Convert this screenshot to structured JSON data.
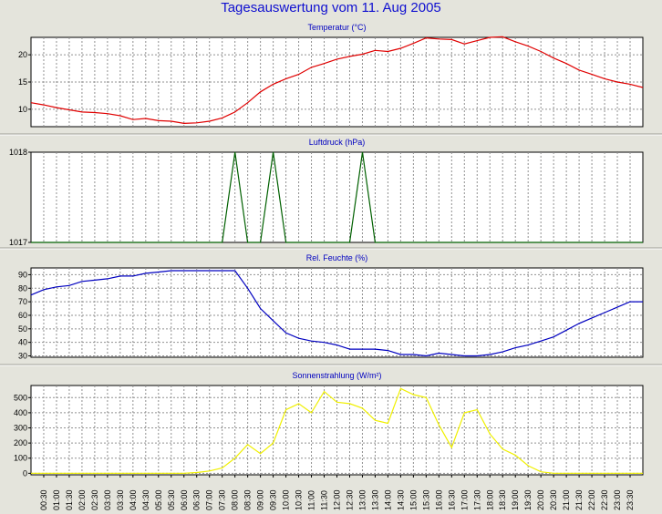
{
  "title": "Tagesauswertung vom 11. Aug 2005",
  "chart_data": [
    {
      "type": "line",
      "title": "Temperatur (°C)",
      "ylim": [
        6.8,
        23.2
      ],
      "yticks": [
        10,
        15,
        20
      ],
      "color": "#e00000",
      "x": [
        "00:00",
        "00:30",
        "01:00",
        "01:30",
        "02:00",
        "02:30",
        "03:00",
        "03:30",
        "04:00",
        "04:30",
        "05:00",
        "05:30",
        "06:00",
        "06:30",
        "07:00",
        "07:30",
        "08:00",
        "08:30",
        "09:00",
        "09:30",
        "10:00",
        "10:30",
        "11:00",
        "11:30",
        "12:00",
        "12:30",
        "13:00",
        "13:30",
        "14:00",
        "14:30",
        "15:00",
        "15:30",
        "16:00",
        "16:30",
        "17:00",
        "17:30",
        "18:00",
        "18:30",
        "19:00",
        "19:30",
        "20:00",
        "20:30",
        "21:00",
        "21:30",
        "22:00",
        "22:30",
        "23:00",
        "23:30",
        "24:00"
      ],
      "values": [
        11.2,
        10.8,
        10.3,
        9.9,
        9.5,
        9.4,
        9.2,
        8.8,
        8.1,
        8.3,
        7.9,
        7.8,
        7.4,
        7.5,
        7.8,
        8.4,
        9.5,
        11.2,
        13.2,
        14.6,
        15.6,
        16.4,
        17.7,
        18.4,
        19.2,
        19.7,
        20.1,
        20.8,
        20.6,
        21.2,
        22.1,
        23.1,
        22.9,
        22.8,
        22.0,
        22.6,
        23.2,
        23.3,
        22.4,
        21.6,
        20.6,
        19.4,
        18.4,
        17.2,
        16.4,
        15.6,
        15.0,
        14.6,
        14.0
      ]
    },
    {
      "type": "line",
      "title": "Luftdruck (hPa)",
      "ylim": [
        1017,
        1018
      ],
      "yticks": [
        1017,
        1018
      ],
      "color": "#006000",
      "x": [
        "00:00",
        "00:30",
        "01:00",
        "01:30",
        "02:00",
        "02:30",
        "03:00",
        "03:30",
        "04:00",
        "04:30",
        "05:00",
        "05:30",
        "06:00",
        "06:30",
        "07:00",
        "07:30",
        "08:00",
        "08:30",
        "09:00",
        "09:30",
        "10:00",
        "10:30",
        "11:00",
        "11:30",
        "12:00",
        "12:30",
        "13:00",
        "13:30",
        "14:00",
        "14:30",
        "15:00",
        "15:30",
        "16:00",
        "16:30",
        "17:00",
        "17:30",
        "18:00",
        "18:30",
        "19:00",
        "19:30",
        "20:00",
        "20:30",
        "21:00",
        "21:30",
        "22:00",
        "22:30",
        "23:00",
        "23:30",
        "24:00"
      ],
      "values": [
        1017,
        1017,
        1017,
        1017,
        1017,
        1017,
        1017,
        1017,
        1017,
        1017,
        1017,
        1017,
        1017,
        1017,
        1017,
        1017,
        1018,
        1017,
        1017,
        1018,
        1017,
        1017,
        1017,
        1017,
        1017,
        1017,
        1018,
        1017,
        1017,
        1017,
        1017,
        1017,
        1017,
        1017,
        1017,
        1017,
        1017,
        1017,
        1017,
        1017,
        1017,
        1017,
        1017,
        1017,
        1017,
        1017,
        1017,
        1017,
        1017
      ]
    },
    {
      "type": "line",
      "title": "Rel. Feuchte (%)",
      "ylim": [
        29,
        95
      ],
      "yticks": [
        30,
        40,
        50,
        60,
        70,
        80,
        90
      ],
      "color": "#0000c0",
      "x": [
        "00:00",
        "00:30",
        "01:00",
        "01:30",
        "02:00",
        "02:30",
        "03:00",
        "03:30",
        "04:00",
        "04:30",
        "05:00",
        "05:30",
        "06:00",
        "06:30",
        "07:00",
        "07:30",
        "08:00",
        "08:30",
        "09:00",
        "09:30",
        "10:00",
        "10:30",
        "11:00",
        "11:30",
        "12:00",
        "12:30",
        "13:00",
        "13:30",
        "14:00",
        "14:30",
        "15:00",
        "15:30",
        "16:00",
        "16:30",
        "17:00",
        "17:30",
        "18:00",
        "18:30",
        "19:00",
        "19:30",
        "20:00",
        "20:30",
        "21:00",
        "21:30",
        "22:00",
        "22:30",
        "23:00",
        "23:30",
        "24:00"
      ],
      "values": [
        75,
        79,
        81,
        82,
        85,
        86,
        87,
        89,
        89,
        91,
        92,
        93,
        93,
        93,
        93,
        93,
        93,
        80,
        65,
        56,
        47,
        43,
        41,
        40,
        38,
        35,
        35,
        35,
        34,
        31,
        31,
        30,
        32,
        31,
        30,
        30,
        31,
        33,
        36,
        38,
        41,
        44,
        49,
        54,
        58,
        62,
        66,
        70,
        70
      ]
    },
    {
      "type": "line",
      "title": "Sonnenstrahlung (W/m²)",
      "ylim": [
        -10,
        580
      ],
      "yticks": [
        0,
        100,
        200,
        300,
        400,
        500
      ],
      "color": "#f0f000",
      "x": [
        "00:00",
        "00:30",
        "01:00",
        "01:30",
        "02:00",
        "02:30",
        "03:00",
        "03:30",
        "04:00",
        "04:30",
        "05:00",
        "05:30",
        "06:00",
        "06:30",
        "07:00",
        "07:30",
        "08:00",
        "08:30",
        "09:00",
        "09:30",
        "10:00",
        "10:30",
        "11:00",
        "11:30",
        "12:00",
        "12:30",
        "13:00",
        "13:30",
        "14:00",
        "14:30",
        "15:00",
        "15:30",
        "16:00",
        "16:30",
        "17:00",
        "17:30",
        "18:00",
        "18:30",
        "19:00",
        "19:30",
        "20:00",
        "20:30",
        "21:00",
        "21:30",
        "22:00",
        "22:30",
        "23:00",
        "23:30",
        "24:00"
      ],
      "values": [
        0,
        0,
        0,
        0,
        0,
        0,
        0,
        0,
        0,
        0,
        0,
        0,
        0,
        5,
        15,
        35,
        100,
        190,
        130,
        200,
        420,
        460,
        400,
        540,
        470,
        460,
        430,
        350,
        330,
        560,
        520,
        500,
        320,
        170,
        400,
        420,
        260,
        160,
        120,
        50,
        10,
        0,
        0,
        0,
        0,
        0,
        0,
        0,
        0
      ]
    }
  ],
  "xticks": [
    "00:30",
    "01:00",
    "01:30",
    "02:00",
    "02:30",
    "03:00",
    "03:30",
    "04:00",
    "04:30",
    "05:00",
    "05:30",
    "06:00",
    "06:30",
    "07:00",
    "07:30",
    "08:00",
    "08:30",
    "09:00",
    "09:30",
    "10:00",
    "10:30",
    "11:00",
    "11:30",
    "12:00",
    "12:30",
    "13:00",
    "13:30",
    "14:00",
    "14:30",
    "15:00",
    "15:30",
    "16:00",
    "16:30",
    "17:00",
    "17:30",
    "18:00",
    "18:30",
    "19:00",
    "19:30",
    "20:00",
    "20:30",
    "21:00",
    "21:30",
    "22:00",
    "22:30",
    "23:00",
    "23:30"
  ]
}
